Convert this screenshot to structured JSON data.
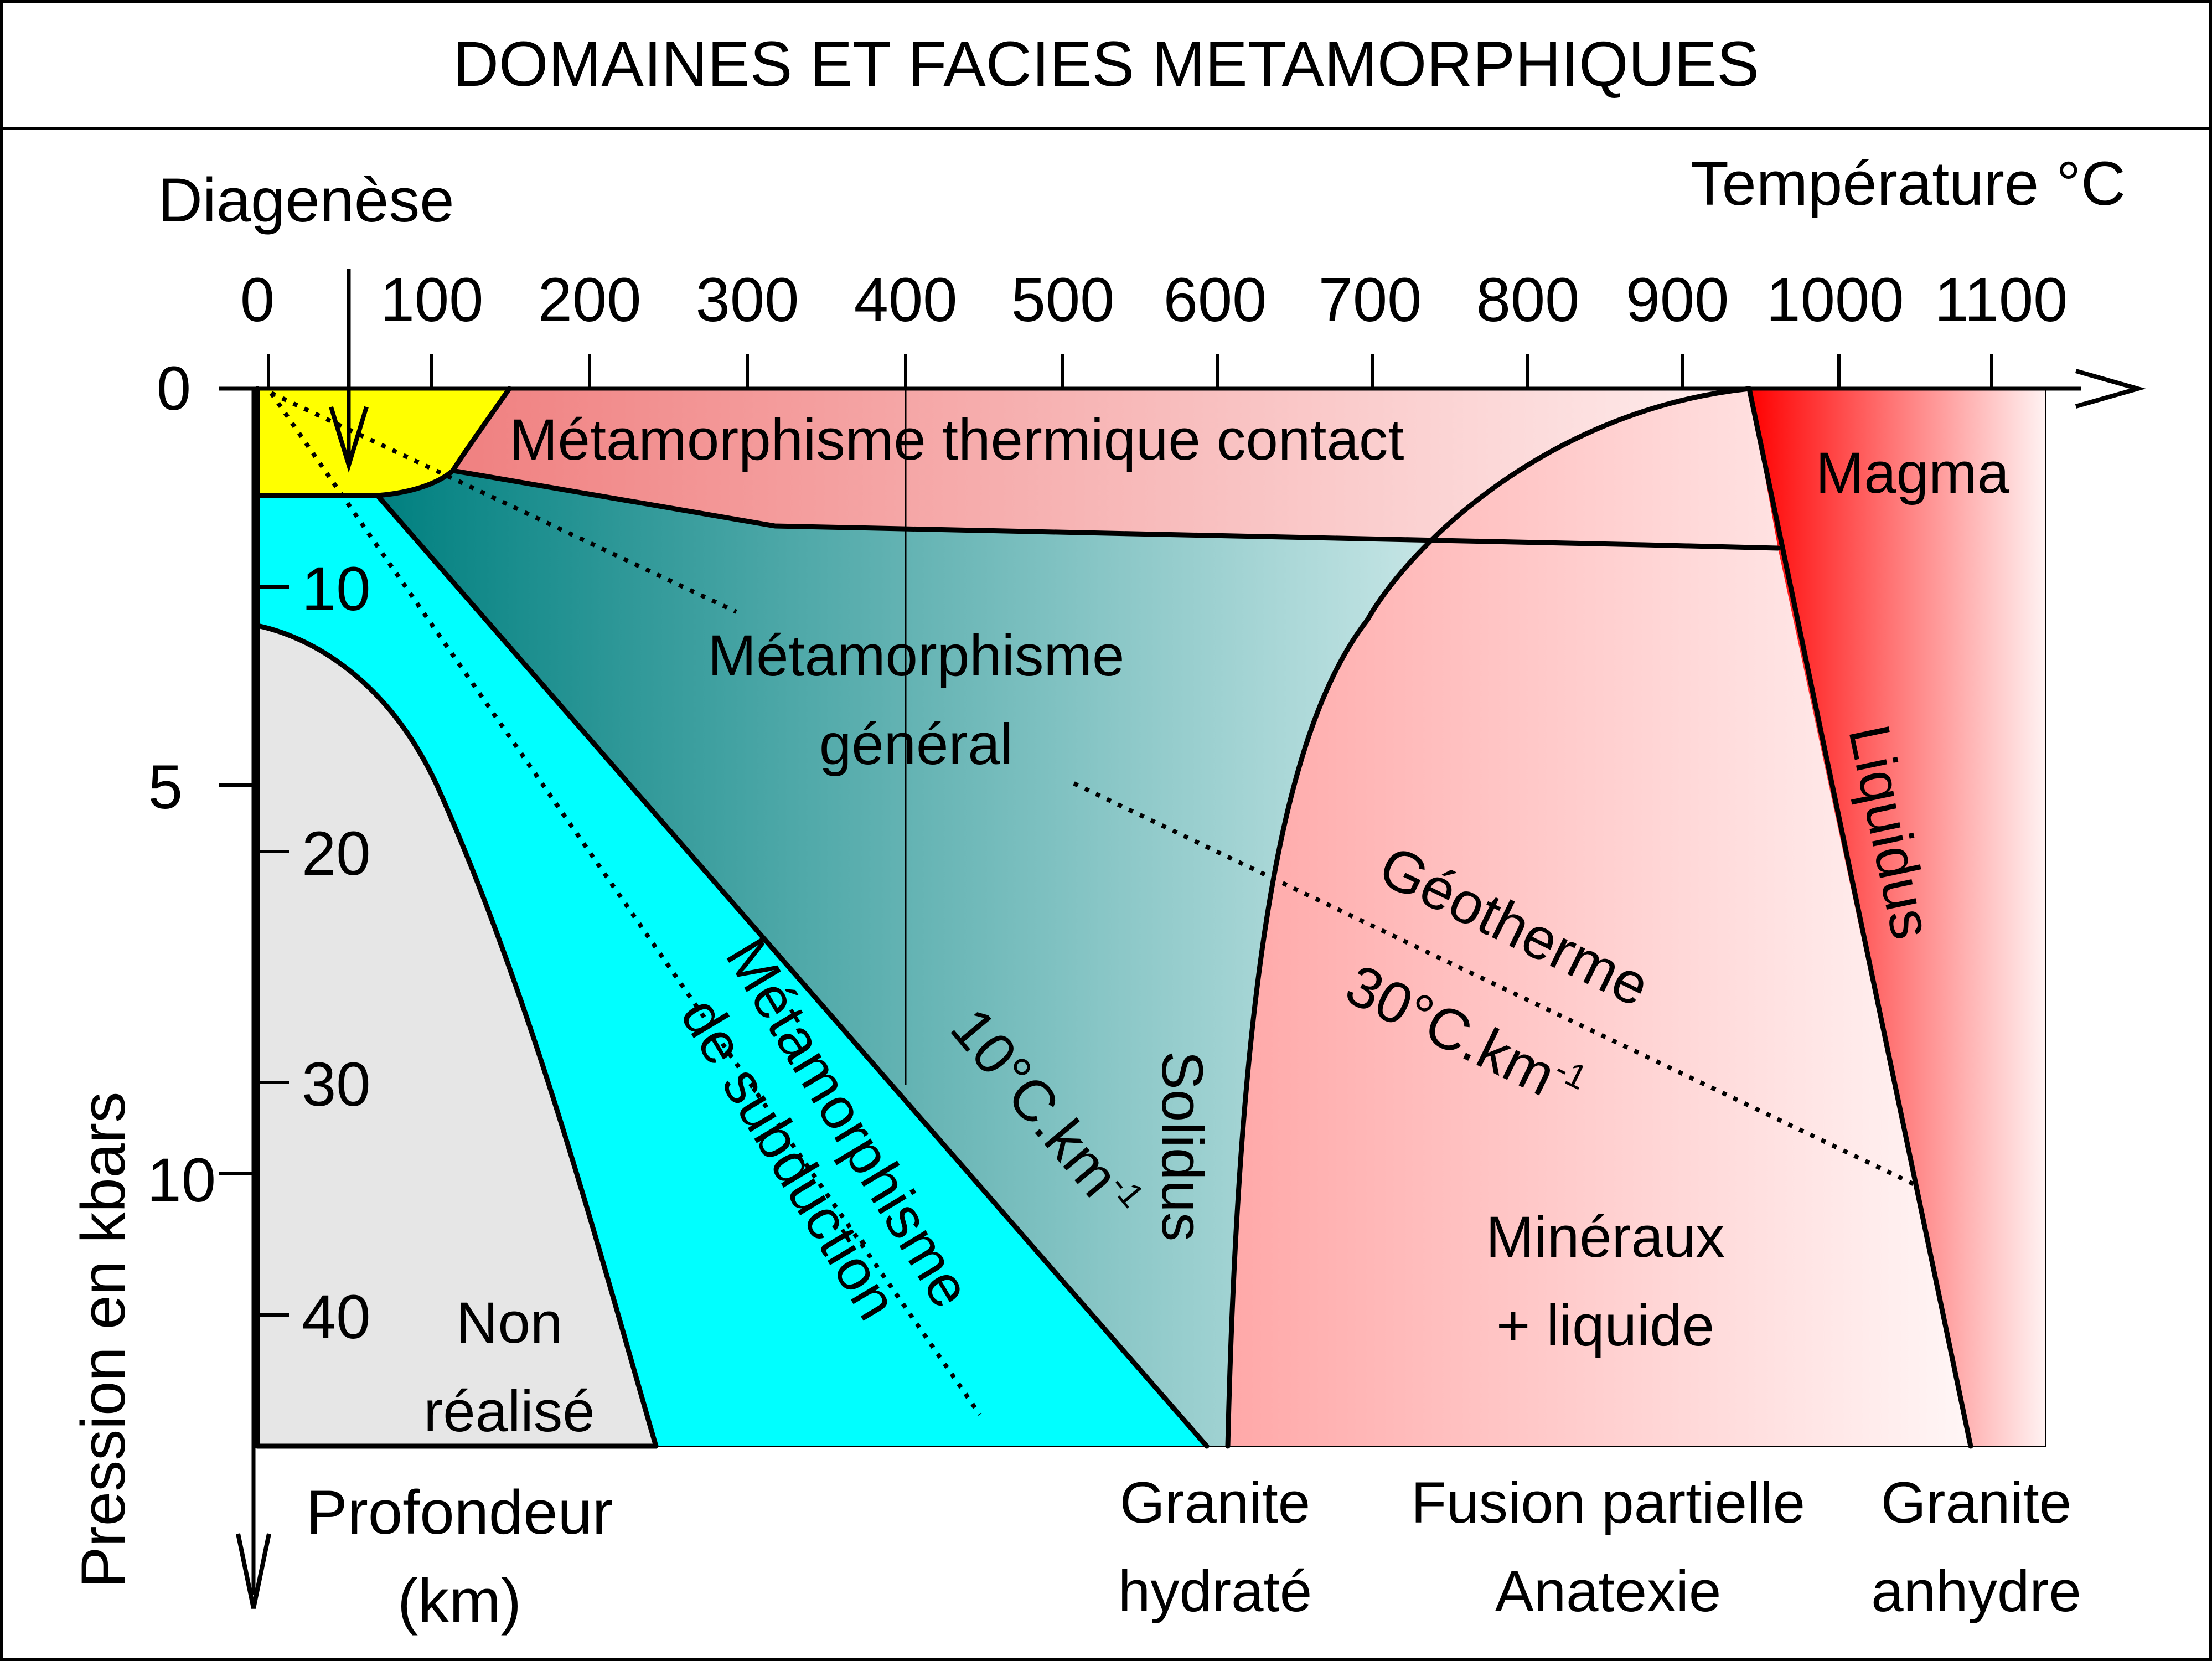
{
  "title": "DOMAINES ET FACIES METAMORPHIQUES",
  "axes": {
    "diagenese": "Diagenèse",
    "temperature_label": "Température °C",
    "pressure_label": "Pression en kbars",
    "depth_label_1": "Profondeur",
    "depth_label_2": "(km)",
    "temperature_ticks": [
      "0",
      "100",
      "200",
      "300",
      "400",
      "500",
      "600",
      "700",
      "800",
      "900",
      "1000",
      "1100"
    ],
    "pressure_ticks": [
      "0",
      "5",
      "10"
    ],
    "depth_ticks": [
      "10",
      "20",
      "30",
      "40"
    ]
  },
  "regions": {
    "contact": "Métamorphisme thermique contact",
    "magma": "Magma",
    "general_1": "Métamorphisme",
    "general_2": "général",
    "subduction_1": "Métamorphisme",
    "subduction_2": "de subduction",
    "non_realise_1": "Non",
    "non_realise_2": "réalisé",
    "mineraux_1": "Minéraux",
    "mineraux_2": "+ liquide"
  },
  "curves": {
    "liquidus": "Liquidus",
    "solidus": "Solidus",
    "geotherm_10": "10°C.km",
    "geotherm_10_exp": "-1",
    "geotherm_30_name": "Géotherme",
    "geotherm_30": "30°C.km",
    "geotherm_30_exp": "-1"
  },
  "bottom_labels": {
    "granite_hydrate_1": "Granite",
    "granite_hydrate_2": "hydraté",
    "fusion_1": "Fusion partielle",
    "fusion_2": "Anatexie",
    "granite_anhydre_1": "Granite",
    "granite_anhydre_2": "anhydre"
  },
  "colors": {
    "diagenese": "#ffff00",
    "subduction": "#00ffff",
    "non_realise": "#e6e6e6",
    "general_dark": "#008080",
    "contact": "#f08080",
    "magma": "#ff0000",
    "anatexie": "#ffaaaa"
  }
}
